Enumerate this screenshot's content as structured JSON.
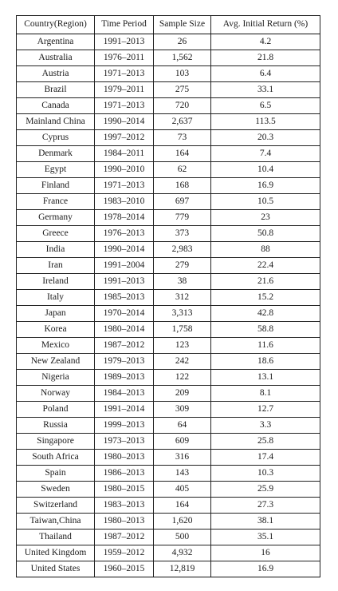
{
  "table": {
    "headers": [
      "Country(Region)",
      "Time Period",
      "Sample Size",
      "Avg. Initial Return (%)"
    ],
    "rows": [
      [
        "Argentina",
        "1991–2013",
        "26",
        "4.2"
      ],
      [
        "Australia",
        "1976–2011",
        "1,562",
        "21.8"
      ],
      [
        "Austria",
        "1971–2013",
        "103",
        "6.4"
      ],
      [
        "Brazil",
        "1979–2011",
        "275",
        "33.1"
      ],
      [
        "Canada",
        "1971–2013",
        "720",
        "6.5"
      ],
      [
        "Mainland China",
        "1990–2014",
        "2,637",
        "113.5"
      ],
      [
        "Cyprus",
        "1997–2012",
        "73",
        "20.3"
      ],
      [
        "Denmark",
        "1984–2011",
        "164",
        "7.4"
      ],
      [
        "Egypt",
        "1990–2010",
        "62",
        "10.4"
      ],
      [
        "Finland",
        "1971–2013",
        "168",
        "16.9"
      ],
      [
        "France",
        "1983–2010",
        "697",
        "10.5"
      ],
      [
        "Germany",
        "1978–2014",
        "779",
        "23"
      ],
      [
        "Greece",
        "1976–2013",
        "373",
        "50.8"
      ],
      [
        "India",
        "1990–2014",
        "2,983",
        "88"
      ],
      [
        "Iran",
        "1991–2004",
        "279",
        "22.4"
      ],
      [
        "Ireland",
        "1991–2013",
        "38",
        "21.6"
      ],
      [
        "Italy",
        "1985–2013",
        "312",
        "15.2"
      ],
      [
        "Japan",
        "1970–2014",
        "3,313",
        "42.8"
      ],
      [
        "Korea",
        "1980–2014",
        "1,758",
        "58.8"
      ],
      [
        "Mexico",
        "1987–2012",
        "123",
        "11.6"
      ],
      [
        "New Zealand",
        "1979–2013",
        "242",
        "18.6"
      ],
      [
        "Nigeria",
        "1989–2013",
        "122",
        "13.1"
      ],
      [
        "Norway",
        "1984–2013",
        "209",
        "8.1"
      ],
      [
        "Poland",
        "1991–2014",
        "309",
        "12.7"
      ],
      [
        "Russia",
        "1999–2013",
        "64",
        "3.3"
      ],
      [
        "Singapore",
        "1973–2013",
        "609",
        "25.8"
      ],
      [
        "South Africa",
        "1980–2013",
        "316",
        "17.4"
      ],
      [
        "Spain",
        "1986–2013",
        "143",
        "10.3"
      ],
      [
        "Sweden",
        "1980–2015",
        "405",
        "25.9"
      ],
      [
        "Switzerland",
        "1983–2013",
        "164",
        "27.3"
      ],
      [
        "Taiwan,China",
        "1980–2013",
        "1,620",
        "38.1"
      ],
      [
        "Thailand",
        "1987–2012",
        "500",
        "35.1"
      ],
      [
        "United Kingdom",
        "1959–2012",
        "4,932",
        "16"
      ],
      [
        "United States",
        "1960–2015",
        "12,819",
        "16.9"
      ]
    ]
  }
}
